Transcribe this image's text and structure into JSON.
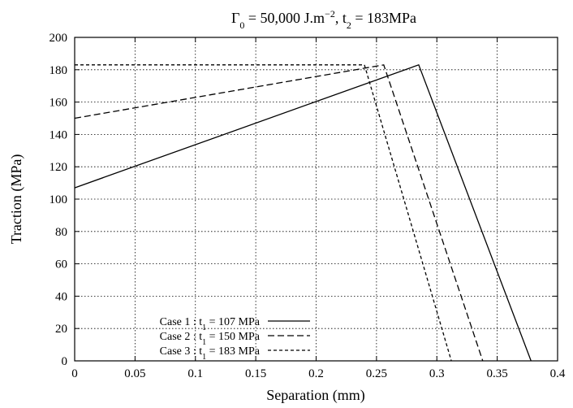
{
  "chart_data": {
    "type": "line",
    "title": {
      "main": "Γ",
      "sub0": "0",
      "mid1": " = 50,000 J.m",
      "sup": "−2",
      "mid2": ", t",
      "sub2": "2",
      "tail": " = 183MPa"
    },
    "xlabel": "Separation (mm)",
    "ylabel": "Traction (MPa)",
    "xlim": [
      0,
      0.4
    ],
    "ylim": [
      0,
      200
    ],
    "xticks": [
      0,
      0.05,
      0.1,
      0.15,
      0.2,
      0.25,
      0.3,
      0.35,
      0.4
    ],
    "xtick_labels": [
      "0",
      "0.05",
      "0.1",
      "0.15",
      "0.2",
      "0.25",
      "0.3",
      "0.35",
      "0.4"
    ],
    "yticks": [
      0,
      20,
      40,
      60,
      80,
      100,
      120,
      140,
      160,
      180,
      200
    ],
    "ytick_labels": [
      "0",
      "20",
      "40",
      "60",
      "80",
      "100",
      "120",
      "140",
      "160",
      "180",
      "200"
    ],
    "grid": true,
    "legend_position": "bottom-left",
    "series": [
      {
        "name": "Case 1 : t1 = 107 MPa",
        "legend": {
          "pre": "Case 1 : t",
          "sub": "1",
          "post": " = 107 MPa"
        },
        "style": "solid",
        "x": [
          0,
          0.285,
          0.378
        ],
        "y": [
          107,
          183,
          0
        ]
      },
      {
        "name": "Case 2 : t1 = 150 MPa",
        "legend": {
          "pre": "Case 2 : t",
          "sub": "1",
          "post": " = 150 MPa"
        },
        "style": "dashed",
        "x": [
          0,
          0.256,
          0.338
        ],
        "y": [
          150,
          183,
          0
        ]
      },
      {
        "name": "Case 3 : t1 = 183 MPa",
        "legend": {
          "pre": "Case 3 : t",
          "sub": "1",
          "post": " = 183 MPa"
        },
        "style": "dotted-dash",
        "x": [
          0,
          0.24,
          0.312
        ],
        "y": [
          183,
          183,
          0
        ]
      }
    ]
  }
}
